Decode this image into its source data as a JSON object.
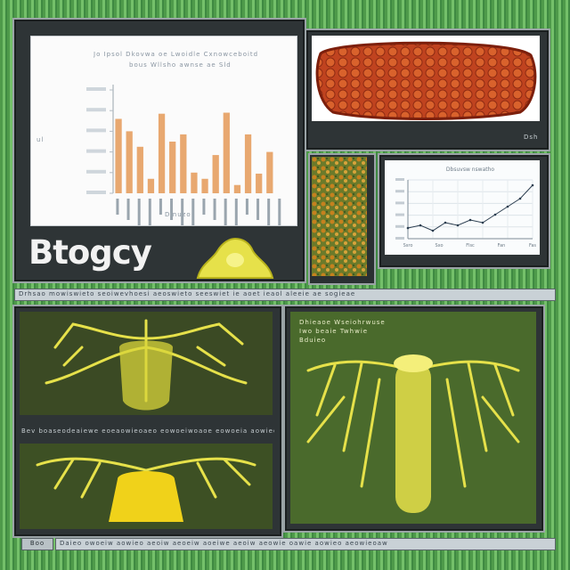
{
  "app": {
    "logo_text": "Btogcy"
  },
  "top_left_panel": {
    "chart_caption_line1": "Jo Ipsol Dkovwa oe Lwoidle Cxnowceboitd",
    "chart_caption_line2": "bous Wllsho awnse ae Sld",
    "y_axis_label": "ul",
    "x_axis_label": "Dmuzo",
    "side_tag": ""
  },
  "chart_data": [
    {
      "type": "bar",
      "title": "",
      "xlabel": "",
      "ylabel": "",
      "ylim": [
        0,
        100
      ],
      "categories": [
        "1",
        "2",
        "3",
        "4",
        "5",
        "6",
        "7",
        "8",
        "9",
        "10",
        "11",
        "12",
        "13",
        "14",
        "15",
        "16"
      ],
      "values": [
        72,
        60,
        45,
        14,
        77,
        50,
        57,
        20,
        14,
        37,
        78,
        8,
        57,
        19,
        40,
        0
      ],
      "bar_color": "#e8a870"
    },
    {
      "type": "line",
      "title": "Dbsuvsw nswatho",
      "xlabel": "",
      "ylabel": "",
      "x": [
        0,
        1,
        2,
        3,
        4,
        5,
        6,
        7,
        8,
        9,
        10
      ],
      "series": [
        {
          "values": [
            4,
            5,
            3,
            6,
            5,
            7,
            6,
            9,
            12,
            15,
            20
          ]
        }
      ],
      "x_tick_labels": [
        "Ssro",
        "Sxo",
        "Flsc",
        "Fan",
        "Fas"
      ],
      "line_color": "#2c3e50"
    }
  ],
  "top_right_panel": {
    "status_text": "Dsh"
  },
  "middle_strip": {
    "text": "Drhsao mowiswieto seoiwevhoesi aeoswieto seeswiet ie aoet ieaol aleeie ae sogieae"
  },
  "lower_left_caption": {
    "text": "Bev boaseodeaiewe eoeaowieoaeo eowoeiwoaoe eowoeia aowieoaewoaeoeiwo"
  },
  "lower_right_panel": {
    "caption_line1": "Dhieaoe Wseiohrwuse",
    "caption_line2": "Iwo beaie Twhwie",
    "caption_line3": "Bduieo"
  },
  "bottom_strip": {
    "button_label": "Boo",
    "text": "Daieo owoeiw aowieo aeoiw aeoeiw aoeiwe aeoiw aeowie oawie aowieo aeowieoaw"
  },
  "colors": {
    "grass_green": "#5fae58",
    "bezel": "#2e3436",
    "bar": "#e8a870",
    "organism_yellow": "#e6e14a",
    "tissue_red": "#c0431f"
  }
}
